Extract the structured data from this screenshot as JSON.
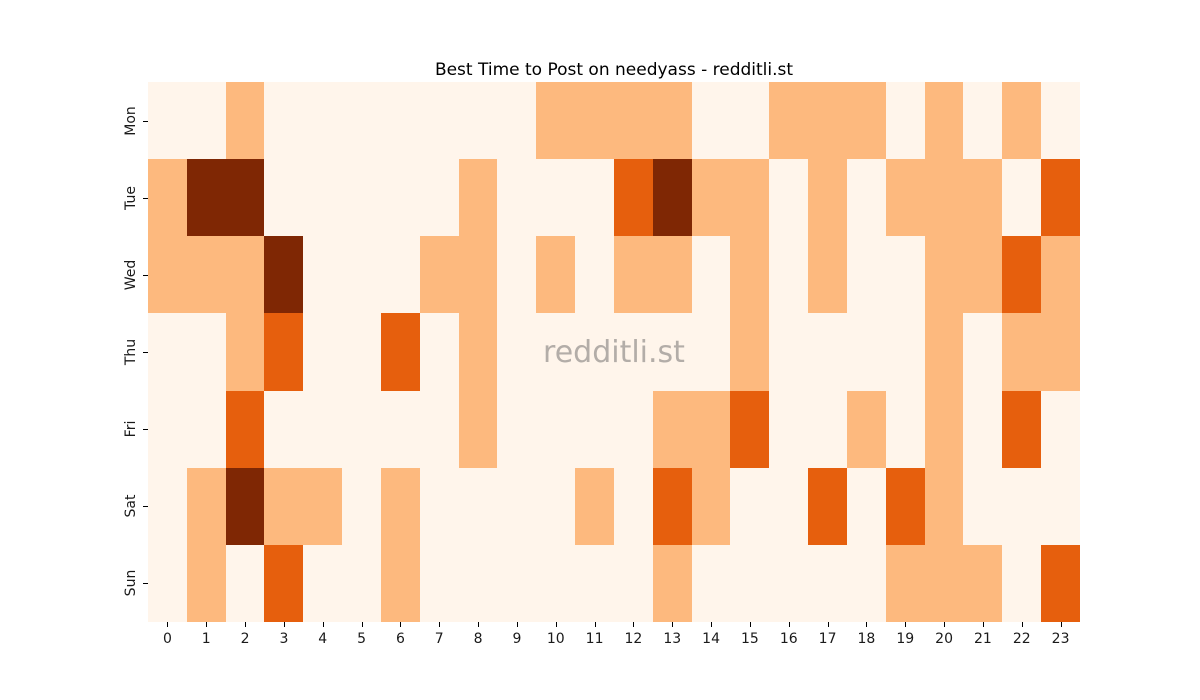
{
  "figure": {
    "watermark": "redditli.st"
  },
  "colors": {
    "background": "#ffffff",
    "title_text": "#000000",
    "tick_text": "#1a1a1a",
    "watermark_text": "#b3ada8"
  },
  "chart_data": {
    "type": "heatmap",
    "title": "Best Time to Post on needyass - redditli.st",
    "xlabel": "",
    "ylabel": "",
    "colormap": "Oranges",
    "legend": "none",
    "grid": "off",
    "level_colors": [
      "#fff5eb",
      "#fdb97e",
      "#e65f0d",
      "#7f2704"
    ],
    "level_meaning": {
      "0": "none",
      "1": "low",
      "2": "medium",
      "3": "high"
    },
    "x_categories": [
      "0",
      "1",
      "2",
      "3",
      "4",
      "5",
      "6",
      "7",
      "8",
      "9",
      "10",
      "11",
      "12",
      "13",
      "14",
      "15",
      "16",
      "17",
      "18",
      "19",
      "20",
      "21",
      "22",
      "23"
    ],
    "y_categories": [
      "Mon",
      "Tue",
      "Wed",
      "Thu",
      "Fri",
      "Sat",
      "Sun"
    ],
    "values": [
      [
        0,
        0,
        1,
        0,
        0,
        0,
        0,
        0,
        0,
        0,
        1,
        1,
        1,
        1,
        0,
        0,
        1,
        1,
        1,
        0,
        1,
        0,
        1,
        0
      ],
      [
        1,
        3,
        3,
        0,
        0,
        0,
        0,
        0,
        1,
        0,
        0,
        0,
        2,
        3,
        1,
        1,
        0,
        1,
        0,
        1,
        1,
        1,
        0,
        2
      ],
      [
        1,
        1,
        1,
        3,
        0,
        0,
        0,
        1,
        1,
        0,
        1,
        0,
        1,
        1,
        0,
        1,
        0,
        1,
        0,
        0,
        1,
        1,
        2,
        1
      ],
      [
        0,
        0,
        1,
        2,
        0,
        0,
        2,
        0,
        1,
        0,
        0,
        0,
        0,
        0,
        0,
        1,
        0,
        0,
        0,
        0,
        1,
        0,
        1,
        1
      ],
      [
        0,
        0,
        2,
        0,
        0,
        0,
        0,
        0,
        1,
        0,
        0,
        0,
        0,
        1,
        1,
        2,
        0,
        0,
        1,
        0,
        1,
        0,
        2,
        0
      ],
      [
        0,
        1,
        3,
        1,
        1,
        0,
        1,
        0,
        0,
        0,
        0,
        1,
        0,
        2,
        1,
        0,
        0,
        2,
        0,
        2,
        1,
        0,
        0,
        0
      ],
      [
        0,
        1,
        0,
        2,
        0,
        0,
        1,
        0,
        0,
        0,
        0,
        0,
        0,
        1,
        0,
        0,
        0,
        0,
        0,
        1,
        1,
        1,
        0,
        2
      ]
    ]
  }
}
